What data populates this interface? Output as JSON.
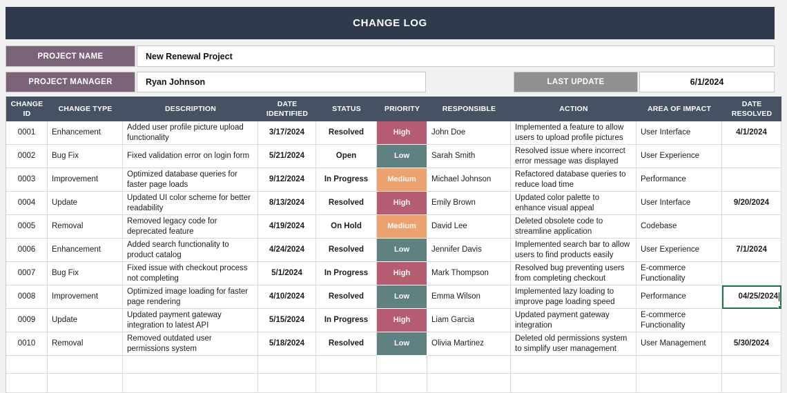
{
  "title": "CHANGE LOG",
  "fields": {
    "project_name_label": "PROJECT NAME",
    "project_name": "New Renewal Project",
    "project_manager_label": "PROJECT MANAGER",
    "project_manager": "Ryan Johnson",
    "last_update_label": "LAST UPDATE",
    "last_update": "6/1/2024"
  },
  "colors": {
    "title_bar": "#2f3b4d",
    "table_header": "#465264",
    "label_purple": "#7b6379",
    "label_gray": "#909090",
    "active_cell_border": "#217346",
    "priority": {
      "High": "#b75d72",
      "Low": "#5f8180",
      "Medium": "#eca26f"
    }
  },
  "table": {
    "columns": [
      "CHANGE ID",
      "CHANGE TYPE",
      "DESCRIPTION",
      "DATE IDENTIFIED",
      "STATUS",
      "PRIORITY",
      "RESPONSIBLE",
      "ACTION",
      "AREA OF IMPACT",
      "DATE RESOLVED"
    ],
    "rows": [
      {
        "id": "0001",
        "type": "Enhancement",
        "description": "Added user profile picture upload functionality",
        "date_identified": "3/17/2024",
        "status": "Resolved",
        "priority": "High",
        "responsible": "John Doe",
        "action": "Implemented a feature to allow users to upload profile pictures",
        "area_of_impact": "User Interface",
        "date_resolved": "4/1/2024"
      },
      {
        "id": "0002",
        "type": "Bug Fix",
        "description": "Fixed validation error on login form",
        "date_identified": "5/21/2024",
        "status": "Open",
        "priority": "Low",
        "responsible": "Sarah Smith",
        "action": "Resolved issue where incorrect error message was displayed",
        "area_of_impact": "User Experience",
        "date_resolved": ""
      },
      {
        "id": "0003",
        "type": "Improvement",
        "description": "Optimized database queries for faster page loads",
        "date_identified": "9/12/2024",
        "status": "In Progress",
        "priority": "Medium",
        "responsible": "Michael Johnson",
        "action": "Refactored database queries to reduce load time",
        "area_of_impact": "Performance",
        "date_resolved": ""
      },
      {
        "id": "0004",
        "type": "Update",
        "description": "Updated UI color scheme for better readability",
        "date_identified": "8/13/2024",
        "status": "Resolved",
        "priority": "High",
        "responsible": "Emily Brown",
        "action": "Updated color palette to enhance visual appeal",
        "area_of_impact": "User Interface",
        "date_resolved": "9/20/2024"
      },
      {
        "id": "0005",
        "type": "Removal",
        "description": "Removed legacy code for deprecated feature",
        "date_identified": "4/19/2024",
        "status": "On Hold",
        "priority": "Medium",
        "responsible": "David Lee",
        "action": "Deleted obsolete code to streamline application",
        "area_of_impact": "Codebase",
        "date_resolved": ""
      },
      {
        "id": "0006",
        "type": "Enhancement",
        "description": "Added search functionality to product catalog",
        "date_identified": "4/24/2024",
        "status": "Resolved",
        "priority": "Low",
        "responsible": "Jennifer Davis",
        "action": "Implemented search bar to allow users to find products easily",
        "area_of_impact": "User Experience",
        "date_resolved": "7/1/2024"
      },
      {
        "id": "0007",
        "type": "Bug Fix",
        "description": "Fixed issue with checkout process not completing",
        "date_identified": "5/1/2024",
        "status": "In Progress",
        "priority": "High",
        "responsible": "Mark Thompson",
        "action": "Resolved bug preventing users from completing checkout",
        "area_of_impact": "E-commerce Functionality",
        "date_resolved": ""
      },
      {
        "id": "0008",
        "type": "Improvement",
        "description": "Optimized image loading for faster page rendering",
        "date_identified": "4/10/2024",
        "status": "Resolved",
        "priority": "Low",
        "responsible": "Emma Wilson",
        "action": "Implemented lazy loading to improve page loading speed",
        "area_of_impact": "Performance",
        "date_resolved": "04/25/2024"
      },
      {
        "id": "0009",
        "type": "Update",
        "description": "Updated payment gateway integration to latest API",
        "date_identified": "5/15/2024",
        "status": "In Progress",
        "priority": "High",
        "responsible": "Liam Garcia",
        "action": "Updated payment gateway integration",
        "area_of_impact": "E-commerce Functionality",
        "date_resolved": ""
      },
      {
        "id": "0010",
        "type": "Removal",
        "description": "Removed outdated user permissions system",
        "date_identified": "5/18/2024",
        "status": "Resolved",
        "priority": "Low",
        "responsible": "Olivia Martinez",
        "action": "Deleted old permissions system to simplify user management",
        "area_of_impact": "User Management",
        "date_resolved": "5/30/2024"
      }
    ],
    "active_cell": {
      "row_id": "0008",
      "column": "date_resolved",
      "value": "04/25/2024"
    },
    "empty_row_count": 2
  }
}
